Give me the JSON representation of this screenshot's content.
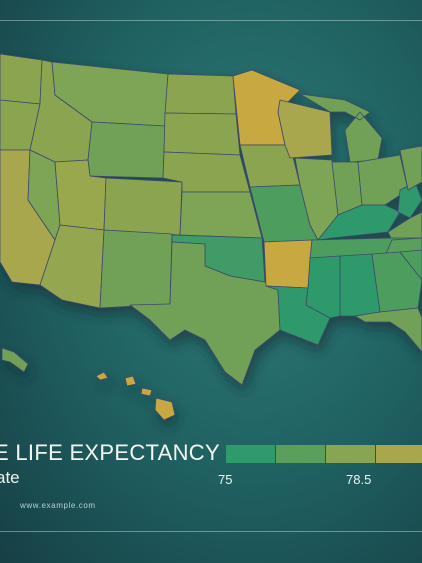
{
  "title": "E LIFE EXPECTANCY",
  "subtitle": "ate",
  "source": "www.example.com",
  "legend": {
    "tick_labels": [
      "75",
      "78.5"
    ],
    "colors": [
      "#2f9a6c",
      "#5a9f5c",
      "#87a552",
      "#a8a74d"
    ]
  },
  "palette": {
    "background": "#1f5f60",
    "state_border": "#3c4a6c",
    "highest": "#c8a840",
    "high": "#a8a74d",
    "mid_high": "#8ba44f",
    "mid": "#6fa156",
    "mid_low": "#4e9d5f",
    "low": "#2f9a6c"
  }
}
